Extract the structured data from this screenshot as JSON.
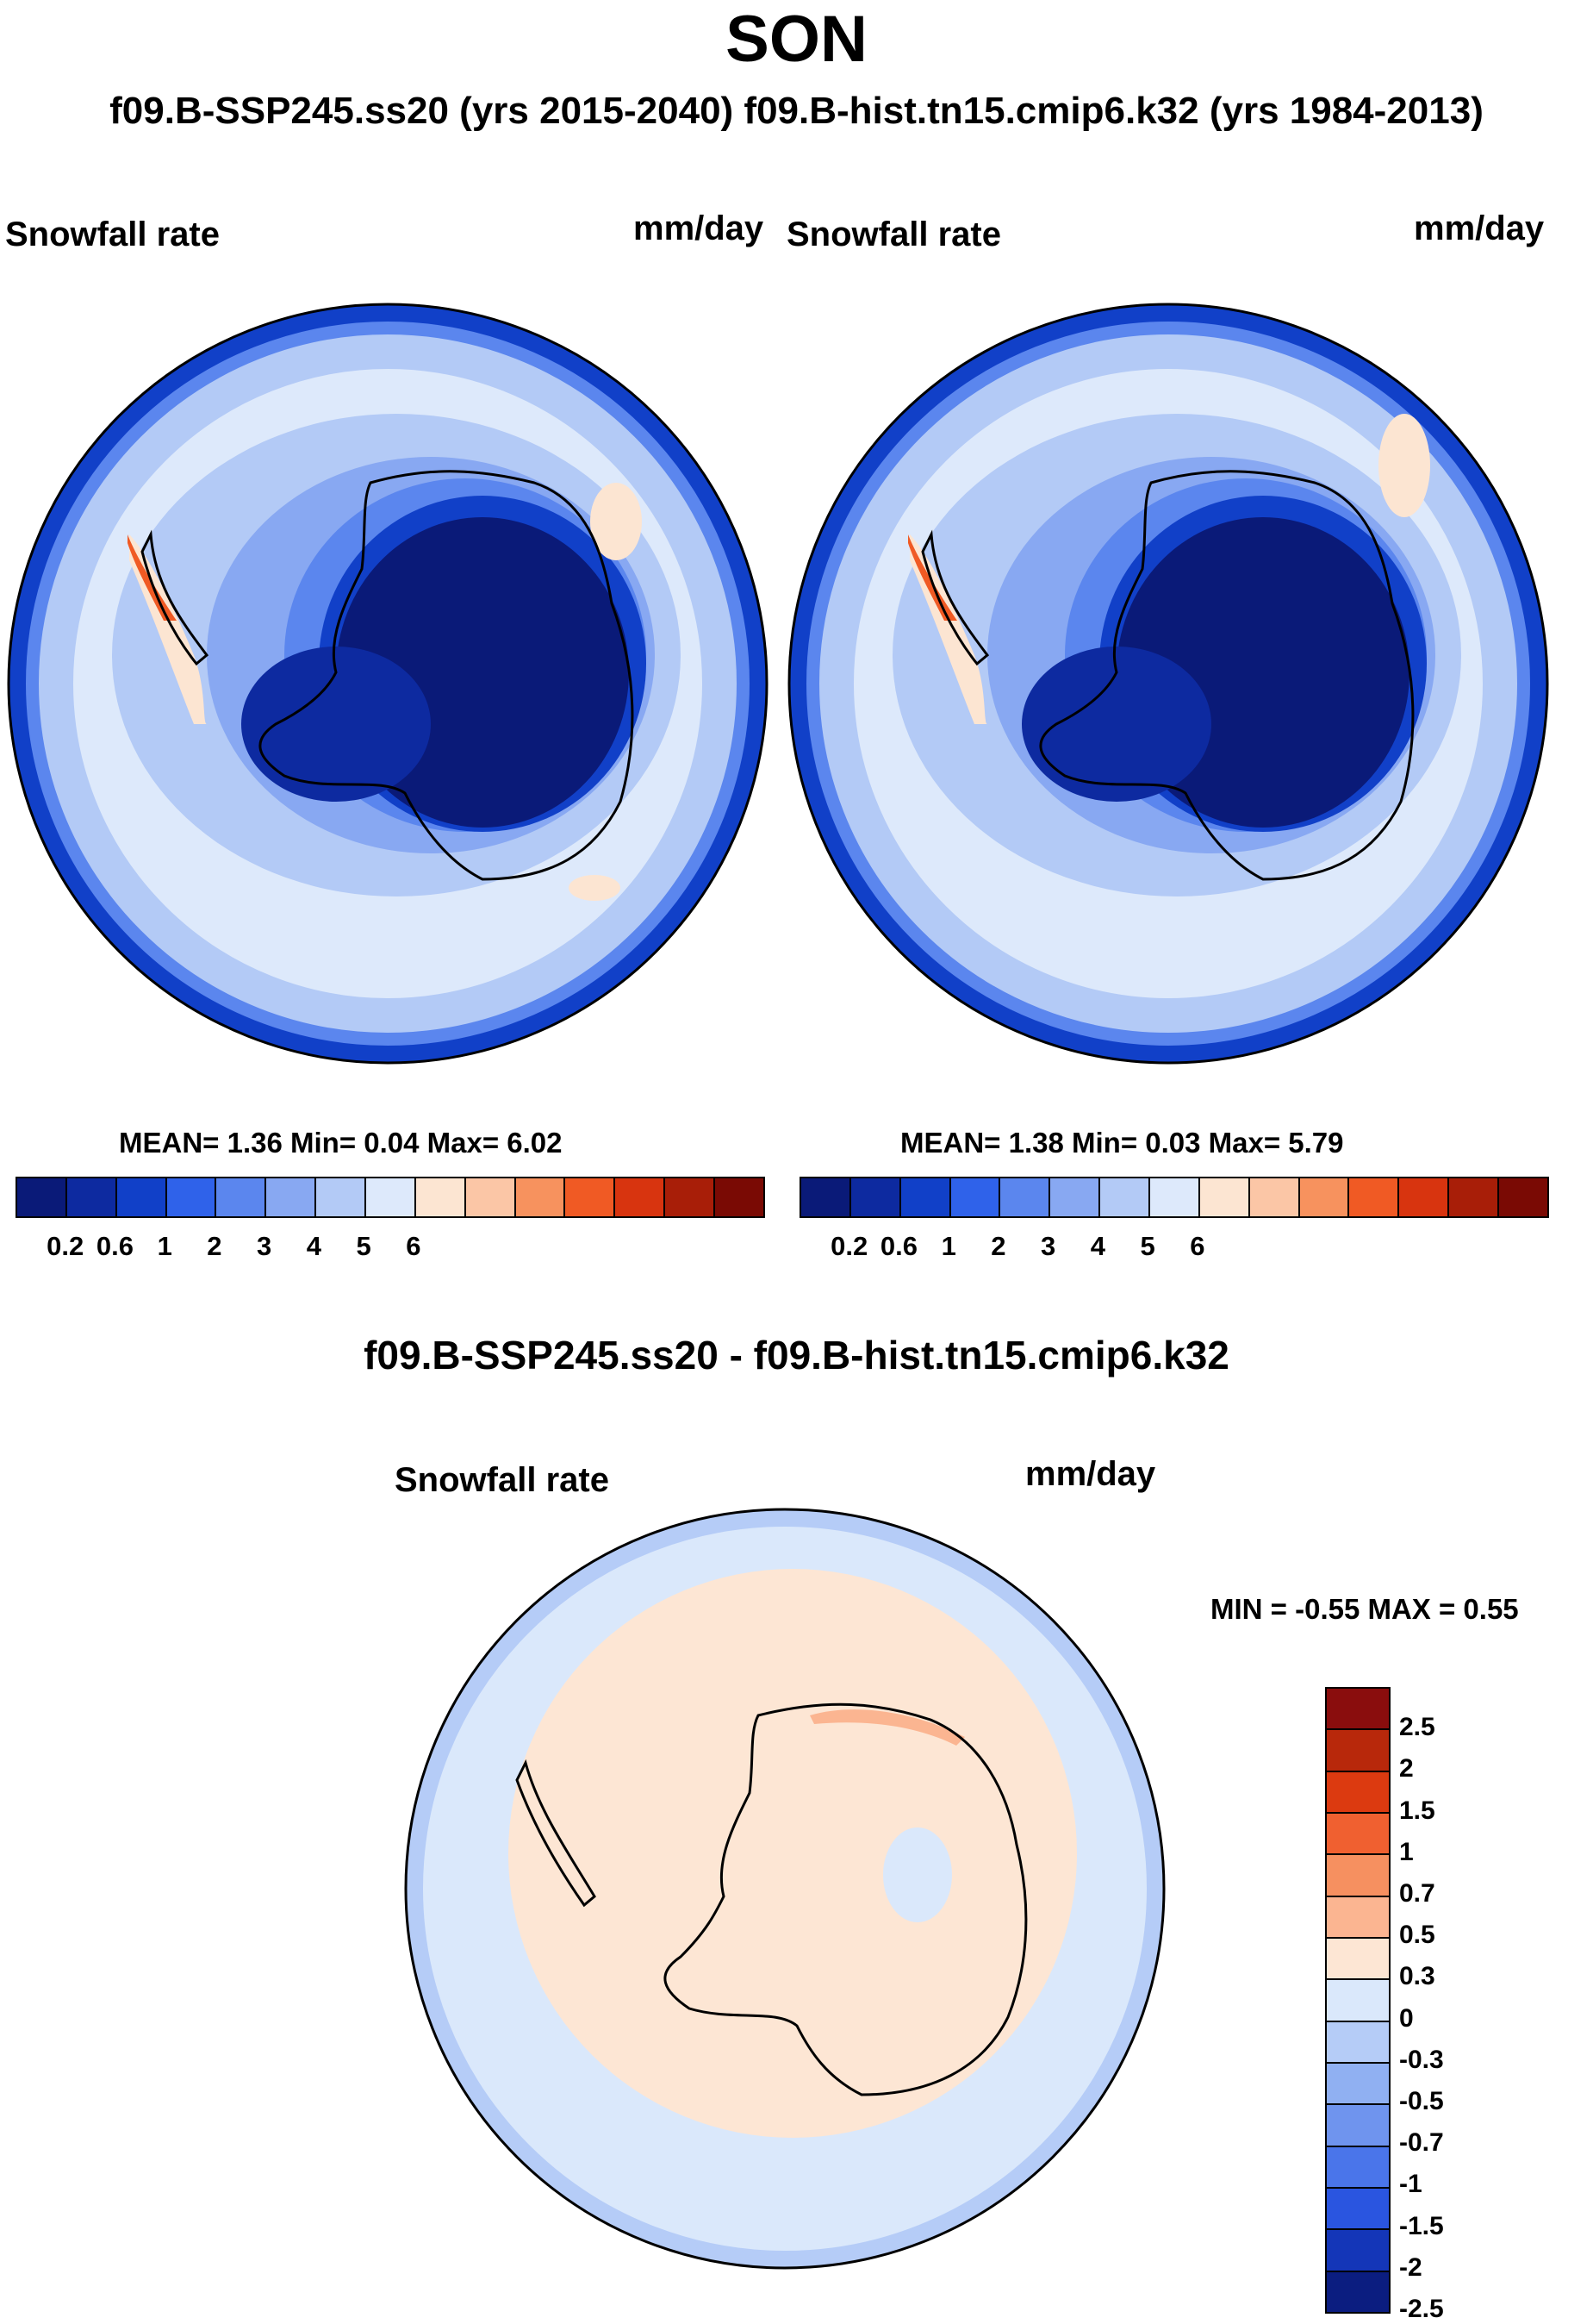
{
  "title": "SON",
  "subtitle": "f09.B-SSP245.ss20 (yrs 2015-2040)  f09.B-hist.tn15.cmip6.k32 (yrs 1984-2013)",
  "panels": [
    {
      "variable": "Snowfall rate",
      "units": "mm/day",
      "stats": "MEAN=   1.36  Min=   0.04  Max=   6.02"
    },
    {
      "variable": "Snowfall rate",
      "units": "mm/day",
      "stats": "MEAN=   1.38  Min=   0.03  Max=   5.79"
    }
  ],
  "diff": {
    "title": "f09.B-SSP245.ss20 - f09.B-hist.tn15.cmip6.k32",
    "variable": "Snowfall rate",
    "units": "mm/day",
    "stats": "MIN =  -0.55 MAX =   0.55"
  },
  "colorbar": {
    "colors": [
      "#0a1a78",
      "#0d2aa0",
      "#1140c8",
      "#2f62ea",
      "#5b86ee",
      "#88a8f2",
      "#b3caf6",
      "#dde9fb",
      "#fce5d2",
      "#fbc6a6",
      "#f7925e",
      "#f05a24",
      "#d8340f",
      "#a81e08",
      "#7a0a04"
    ],
    "tick_labels": [
      "0.2",
      "0.6",
      "1",
      "2",
      "3",
      "4",
      "5",
      "6"
    ]
  },
  "diff_colorbar": {
    "colors": [
      "#8a0d0d",
      "#b8280b",
      "#dc3a10",
      "#f06030",
      "#f69060",
      "#fbb591",
      "#fde6d4",
      "#dae8fb",
      "#b5ccf7",
      "#90b0f2",
      "#6f94ee",
      "#4a75ea",
      "#2a55e0",
      "#1436b8",
      "#0b1d80"
    ],
    "tick_labels": [
      "2.5",
      "2",
      "1.5",
      "1",
      "0.7",
      "0.5",
      "0.3",
      "0",
      "-0.3",
      "-0.5",
      "-0.7",
      "-1",
      "-1.5",
      "-2",
      "-2.5"
    ]
  }
}
